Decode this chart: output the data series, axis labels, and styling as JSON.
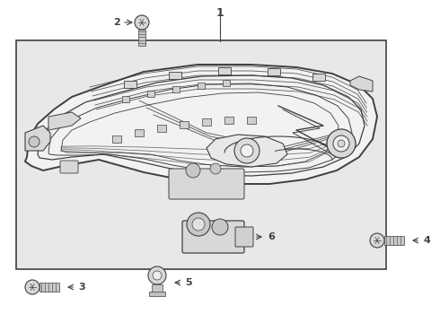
{
  "bg_color": "#ffffff",
  "box_bg": "#e8e8e8",
  "line_color": "#404040",
  "fig_w": 4.9,
  "fig_h": 3.6,
  "dpi": 100
}
